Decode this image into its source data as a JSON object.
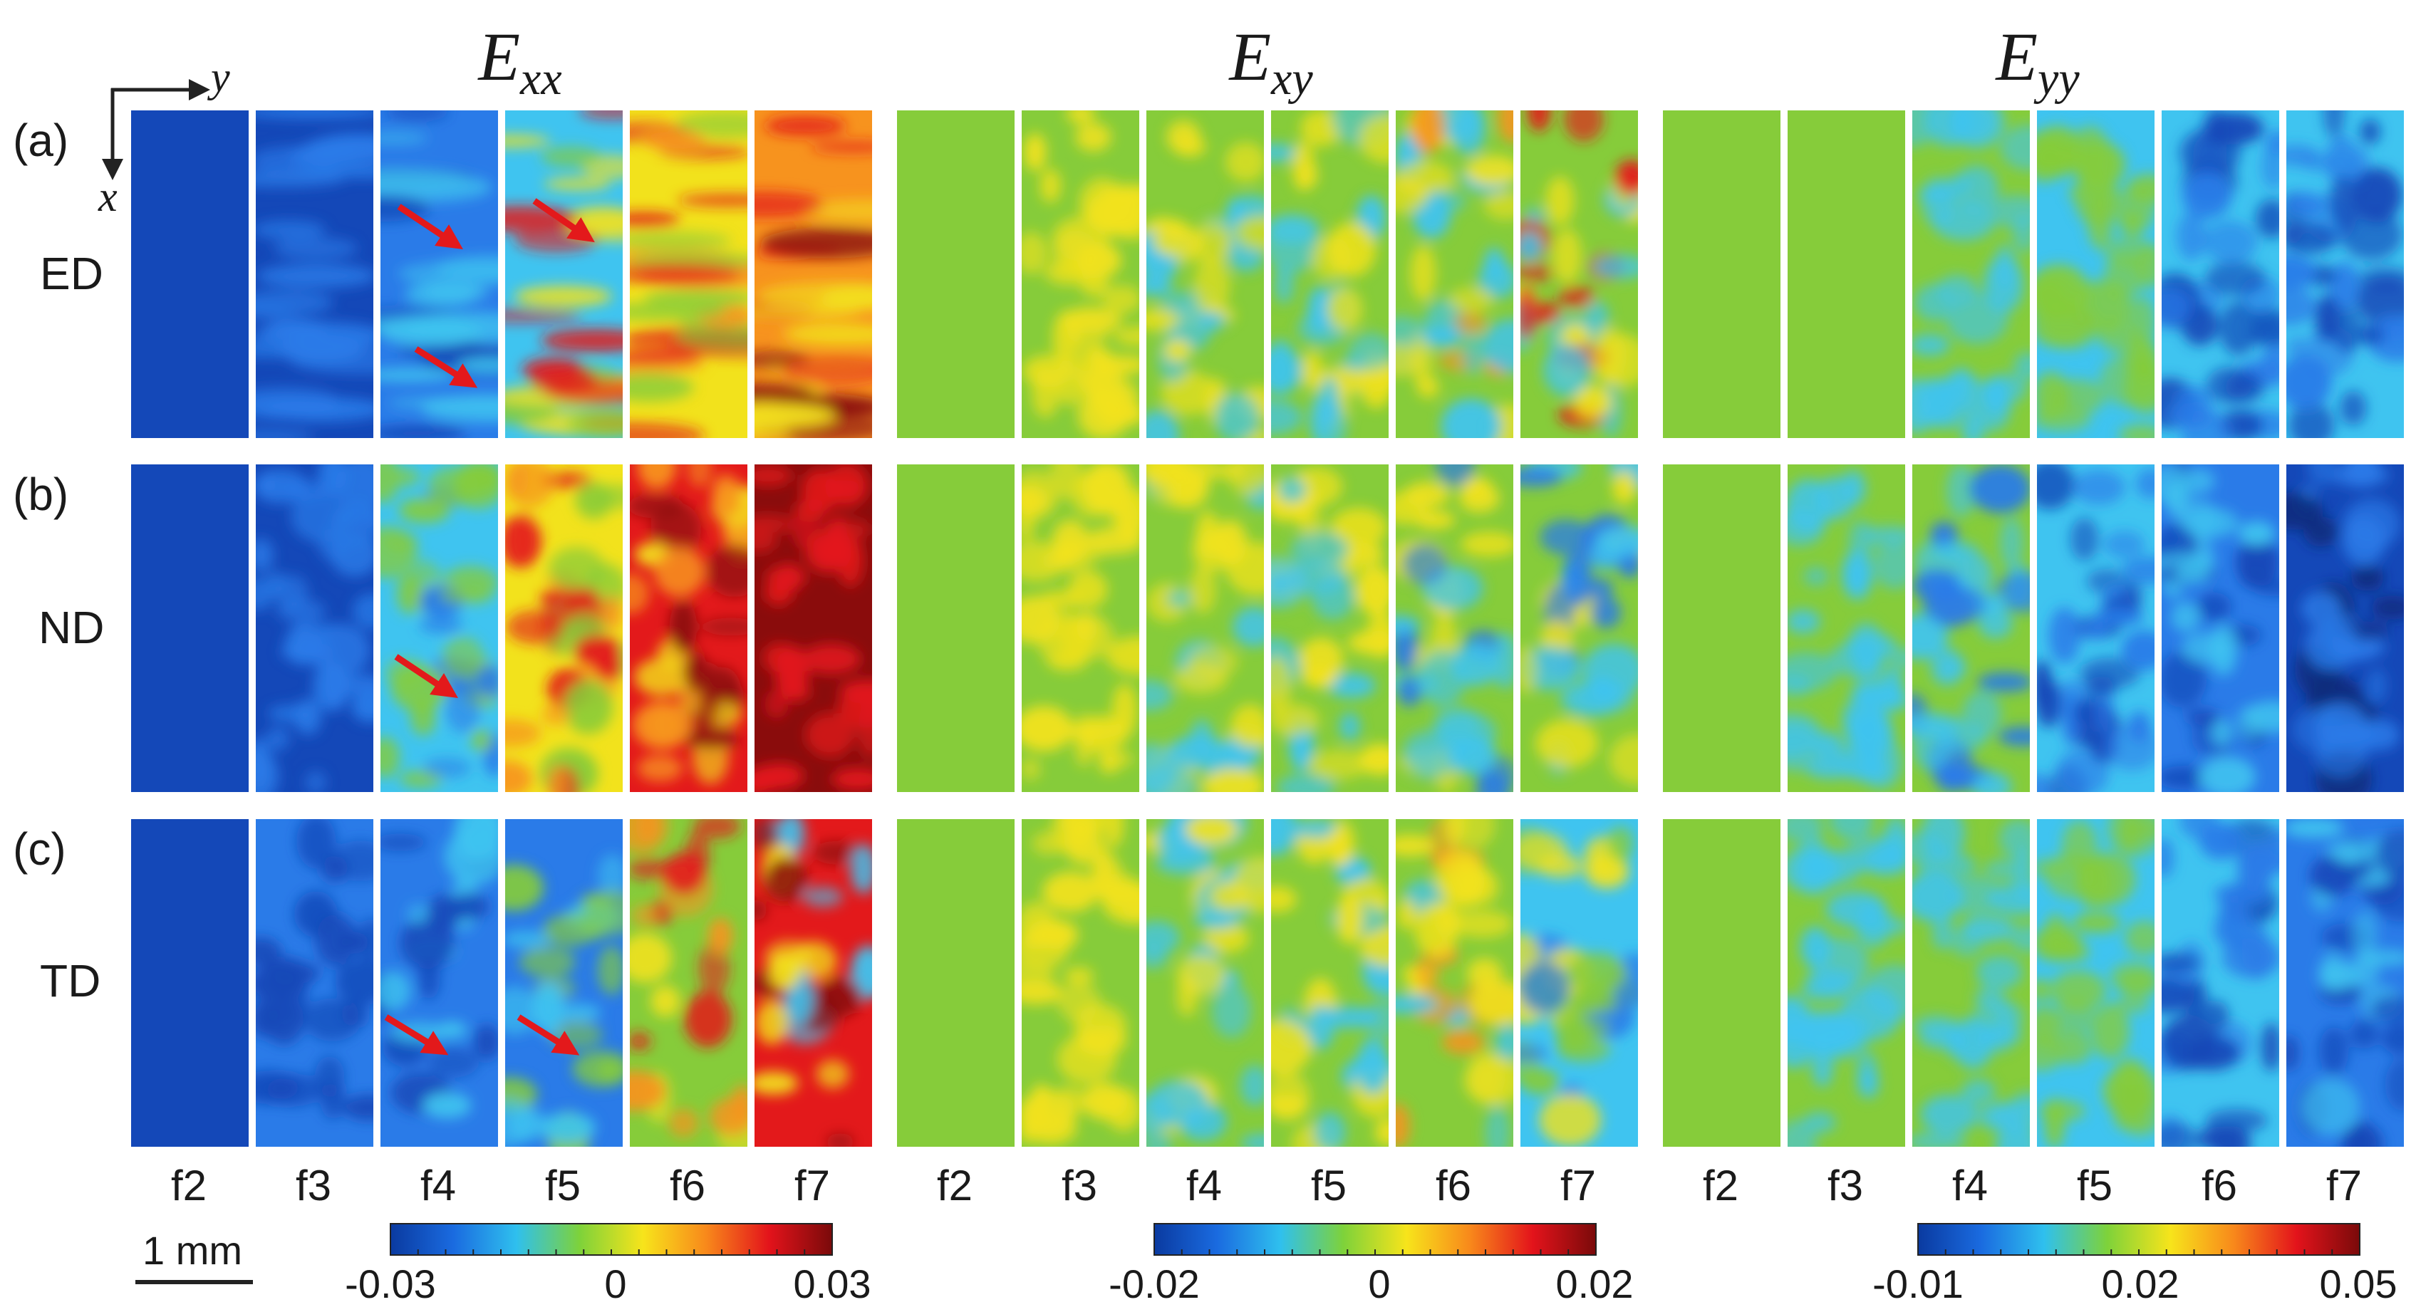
{
  "row_labels": [
    "(a)",
    "(b)",
    "(c)"
  ],
  "row_directions": [
    "ED",
    "ND",
    "TD"
  ],
  "axes": {
    "horizontal": "y",
    "vertical": "x"
  },
  "frames": [
    "f2",
    "f3",
    "f4",
    "f5",
    "f6",
    "f7"
  ],
  "scale_bar": "1 mm",
  "panels": [
    {
      "title": "E",
      "subscript": "xx",
      "colorbar": {
        "min": "-0.03",
        "mid": "0",
        "max": "0.03",
        "colors": [
          "#0a3aa0",
          "#1a6be0",
          "#2fc0ee",
          "#7ed23a",
          "#f7e41b",
          "#f8891b",
          "#e3131b",
          "#7a0a0a"
        ]
      }
    },
    {
      "title": "E",
      "subscript": "xy",
      "colorbar": {
        "min": "-0.02",
        "mid": "0",
        "max": "0.02",
        "colors": [
          "#0a3aa0",
          "#1a6be0",
          "#2fc0ee",
          "#7ed23a",
          "#f7e41b",
          "#f8891b",
          "#e3131b",
          "#7a0a0a"
        ]
      }
    },
    {
      "title": "E",
      "subscript": "yy",
      "colorbar": {
        "min": "-0.01",
        "mid": "0.02",
        "max": "0.05",
        "colors": [
          "#0a3aa0",
          "#1a6be0",
          "#2fc0ee",
          "#7ed23a",
          "#f7e41b",
          "#f8891b",
          "#e3131b",
          "#7a0a0a"
        ]
      }
    }
  ],
  "colors": {
    "deep_blue": "#1448b8",
    "blue": "#2a7be8",
    "cyan": "#3fc4f0",
    "green": "#86cc3a",
    "yellow": "#f2e21c",
    "orange": "#f7931e",
    "red": "#e3191b",
    "dark_red": "#8a0c0c",
    "arrow": "#e3191b"
  }
}
